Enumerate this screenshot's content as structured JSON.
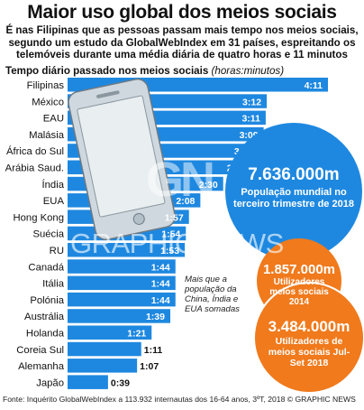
{
  "title": "Maior uso global dos meios sociais",
  "subtitle": "É nas Filipinas que as pessoas passam mais tempo nos meios sociais, segundo um estudo da GlobalWebIndex em 31 países, espreitando os telemóveis durante uma média diária de quatro horas e 11 minutos",
  "axis_caption": "Tempo diário passado nos meios sociais",
  "axis_unit": "(horas:minutos)",
  "source": "Fonte: Inquérito GlobalWebIndex a 113.932 internautas dos 16-64 anos, 3ºT, 2018 © GRAPHIC NEWS",
  "note": "Mais que a população da China, Índia e EUA somadas",
  "watermark": {
    "logo": "GN",
    "text": "GRAPHIC NEWS"
  },
  "bubbles": {
    "population": {
      "value": "7.636.000m",
      "label": "População mundial no terceiro trimestre de 2018"
    },
    "users_2014": {
      "value": "1.857.000m",
      "label": "Utilizadores meios sociais 2014"
    },
    "users_2018": {
      "value": "3.484.000m",
      "label": "Utilizadores de meios sociais Jul-Set 2018"
    }
  },
  "colors": {
    "bar": "#1e88e0",
    "bubble_blue": "#1e88e0",
    "bubble_orange": "#f07a1c",
    "title": "#111111"
  },
  "chart_data": {
    "type": "bar",
    "orientation": "horizontal",
    "categories": [
      "Filipinas",
      "México",
      "EAU",
      "Malásia",
      "África do Sul",
      "Arábia Saud.",
      "Índia",
      "EUA",
      "Hong Kong",
      "Suécia",
      "RU",
      "Canadá",
      "Itália",
      "Polónia",
      "Austrália",
      "Holanda",
      "Coreia Sul",
      "Alemanha",
      "Japão"
    ],
    "labels": [
      "4:11",
      "3:12",
      "3:11",
      "3:09",
      "3:04",
      "2:57",
      "2:30",
      "2:08",
      "1:57",
      "1:54",
      "1:53",
      "1:44",
      "1:44",
      "1:44",
      "1:39",
      "1:21",
      "1:11",
      "1:07",
      "0:39"
    ],
    "values": [
      251,
      192,
      191,
      189,
      184,
      177,
      150,
      128,
      117,
      114,
      113,
      104,
      104,
      104,
      99,
      81,
      71,
      67,
      39
    ],
    "value_unit": "minutes",
    "xlim": [
      0,
      251
    ]
  }
}
